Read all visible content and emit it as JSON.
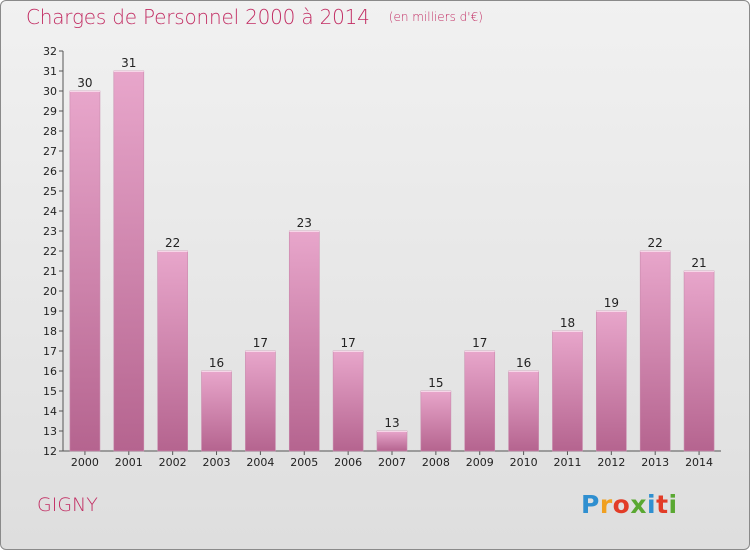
{
  "title": "Charges de Personnel 2000 à 2014",
  "subtitle": "(en milliers d'€)",
  "town": "GIGNY",
  "logo": {
    "letters": [
      "P",
      "r",
      "o",
      "x",
      "i",
      "t",
      "i"
    ],
    "colors": [
      "#2f8fd0",
      "#f0a020",
      "#e23c27",
      "#5aa832",
      "#2f8fd0",
      "#e23c27",
      "#5aa832"
    ]
  },
  "colors": {
    "accent": "#c22d63",
    "bar_top": "#e8a6cb",
    "bar_bottom": "#b5648f"
  },
  "chart_data": {
    "type": "bar",
    "title": "Charges de Personnel 2000 à 2014",
    "subtitle": "(en milliers d'€)",
    "categories": [
      "2000",
      "2001",
      "2002",
      "2003",
      "2004",
      "2005",
      "2006",
      "2007",
      "2008",
      "2009",
      "2010",
      "2011",
      "2012",
      "2013",
      "2014"
    ],
    "values": [
      30,
      31,
      22,
      16,
      17,
      23,
      17,
      13,
      15,
      17,
      16,
      18,
      19,
      22,
      21
    ],
    "ylim": [
      12,
      32
    ],
    "yticks": [
      "12",
      "13",
      "14",
      "15",
      "16",
      "17",
      "18",
      "19",
      "20",
      "21",
      "22",
      "23",
      "24",
      "25",
      "26",
      "27",
      "28",
      "29",
      "30",
      "31",
      "32"
    ],
    "grid": false,
    "legend": "none"
  }
}
